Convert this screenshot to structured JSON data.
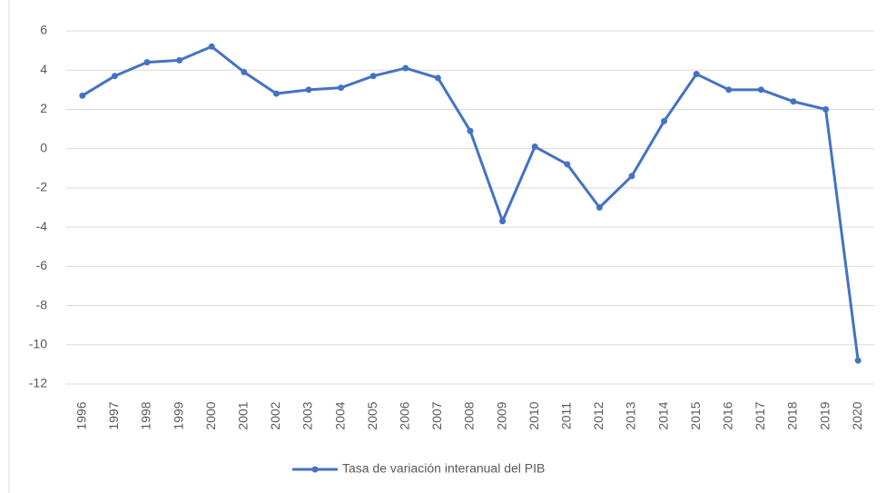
{
  "chart_data": {
    "type": "line",
    "categories": [
      "1996",
      "1997",
      "1998",
      "1999",
      "2000",
      "2001",
      "2002",
      "2003",
      "2004",
      "2005",
      "2006",
      "2007",
      "2008",
      "2009",
      "2010",
      "2011",
      "2012",
      "2013",
      "2014",
      "2015",
      "2016",
      "2017",
      "2018",
      "2019",
      "2020"
    ],
    "series": [
      {
        "name": "Tasa de variación interanual del PIB",
        "color": "#4472c4",
        "values": [
          2.7,
          3.7,
          4.4,
          4.5,
          5.2,
          3.9,
          2.8,
          3.0,
          3.1,
          3.7,
          4.1,
          3.6,
          0.9,
          -3.7,
          0.1,
          -0.8,
          -3.0,
          -1.4,
          1.4,
          3.8,
          3.0,
          3.0,
          2.4,
          2.0,
          -10.8
        ]
      }
    ],
    "ylim": [
      -12,
      6
    ],
    "yticks": [
      -12,
      -10,
      -8,
      -6,
      -4,
      -2,
      0,
      2,
      4,
      6
    ],
    "grid": true,
    "legend": "bottom"
  }
}
